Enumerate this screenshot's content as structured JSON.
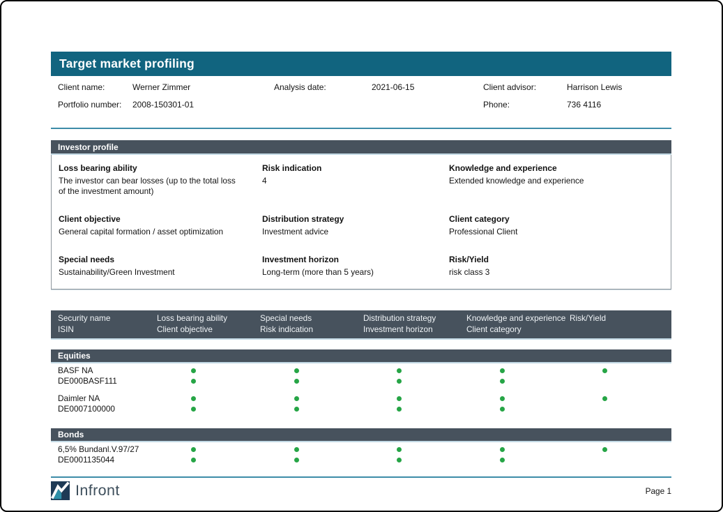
{
  "title": "Target market profiling",
  "client_info": {
    "row1": {
      "l1": "Client name:",
      "v1": "Werner Zimmer",
      "l2": "Analysis date:",
      "v2": "2021-06-15",
      "l3": "Client advisor:",
      "v3": "Harrison Lewis"
    },
    "row2": {
      "l1": "Portfolio number:",
      "v1": "2008-150301-01",
      "l2": "",
      "v2": "",
      "l3": "Phone:",
      "v3": "736 4116"
    }
  },
  "investor_profile": {
    "header": "Investor profile",
    "fields": [
      {
        "label": "Loss bearing ability",
        "value": "The investor can bear losses (up to the total loss of the investment amount)"
      },
      {
        "label": "Risk indication",
        "value": "4"
      },
      {
        "label": "Knowledge and experience",
        "value": "Extended knowledge and experience"
      },
      {
        "label": "Client objective",
        "value": "General capital formation / asset optimization"
      },
      {
        "label": "Distribution strategy",
        "value": "Investment advice"
      },
      {
        "label": "Client category",
        "value": "Professional Client"
      },
      {
        "label": "Special needs",
        "value": "Sustainability/Green Investment"
      },
      {
        "label": "Investment horizon",
        "value": "Long-term (more than 5 years)"
      },
      {
        "label": "Risk/Yield",
        "value": "risk class 3"
      }
    ]
  },
  "table": {
    "columns": [
      {
        "top": "Security name",
        "bottom": "ISIN"
      },
      {
        "top": "Loss bearing ability",
        "bottom": "Client objective"
      },
      {
        "top": "Special needs",
        "bottom": "Risk indication"
      },
      {
        "top": "Distribution strategy",
        "bottom": "Investment horizon"
      },
      {
        "top": "Knowledge and experience",
        "bottom": "Client category"
      },
      {
        "top": "Risk/Yield",
        "bottom": ""
      }
    ],
    "sections": [
      {
        "name": "Equities",
        "rows": [
          {
            "security": "BASF NA",
            "isin": "DE000BASF111",
            "dots_top": [
              true,
              true,
              true,
              true,
              true
            ],
            "dots_bottom": [
              true,
              true,
              true,
              true,
              false
            ]
          },
          {
            "security": "Daimler NA",
            "isin": "DE0007100000",
            "dots_top": [
              true,
              true,
              true,
              true,
              true
            ],
            "dots_bottom": [
              true,
              true,
              true,
              true,
              false
            ]
          }
        ]
      },
      {
        "name": "Bonds",
        "rows": [
          {
            "security": "6,5% Bundanl.V.97/27",
            "isin": "DE0001135044",
            "dots_top": [
              true,
              true,
              true,
              true,
              true
            ],
            "dots_bottom": [
              true,
              true,
              true,
              true,
              false
            ]
          }
        ]
      }
    ]
  },
  "footer": {
    "brand": "Infront",
    "page_label": "Page 1"
  },
  "colors": {
    "title_bar": "#11647F",
    "section_header": "#47525D",
    "divider_teal": "#3D8CA8",
    "light_line": "#C2D9E4",
    "dot_green": "#26A546",
    "brand_text": "#3E4F5C"
  }
}
